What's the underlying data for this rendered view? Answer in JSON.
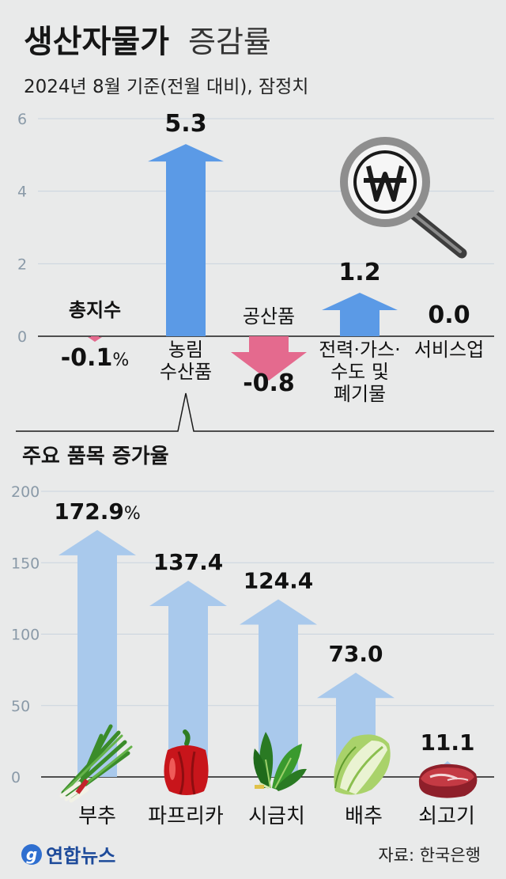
{
  "header": {
    "title_bold": "생산자물가",
    "title_light": "증감률",
    "subtitle": "2024년 8월 기준(전월 대비), 잠정치"
  },
  "section2_title": "주요 품목 증가율",
  "source": "자료: 한국은행",
  "logo_text": "연합뉴스",
  "colors": {
    "background": "#e9eaea",
    "positive_arrow": "#5b9ae6",
    "negative_arrow": "#e46a8e",
    "item_arrow": "#a9c9ec",
    "tick_text": "#8a9aa8"
  },
  "icons": {
    "magnifier": "magnifier-won-icon",
    "items": [
      "chives-icon",
      "paprika-icon",
      "spinach-icon",
      "napa-cabbage-icon",
      "beef-icon"
    ]
  },
  "chart_data": [
    {
      "type": "bar",
      "categories": [
        "총지수",
        "농림 수산품",
        "공산품",
        "전력·가스· 수도 및 폐기물",
        "서비스업"
      ],
      "category_lines": [
        [
          "총지수"
        ],
        [
          "농림",
          "수산품"
        ],
        [
          "공산품"
        ],
        [
          "전력·가스·",
          "수도 및",
          "폐기물"
        ],
        [
          "서비스업"
        ]
      ],
      "values": [
        -0.1,
        5.3,
        -0.8,
        1.2,
        0.0
      ],
      "value_labels": [
        "-0.1",
        "5.3",
        "-0.8",
        "1.2",
        "0.0"
      ],
      "value_unit_first": "%",
      "ylim": [
        0,
        6
      ],
      "yticks": [
        "0",
        "2",
        "4",
        "6"
      ],
      "grid": true,
      "mark": "arrow"
    },
    {
      "type": "bar",
      "title": "주요 품목 증가율",
      "categories": [
        "부추",
        "파프리카",
        "시금치",
        "배추",
        "쇠고기"
      ],
      "values": [
        172.9,
        137.4,
        124.4,
        73.0,
        11.1
      ],
      "value_labels": [
        "172.9",
        "137.4",
        "124.4",
        "73.0",
        "11.1"
      ],
      "value_unit_first": "%",
      "ylim": [
        0,
        200
      ],
      "yticks": [
        "0",
        "50",
        "100",
        "150",
        "200"
      ],
      "grid": true,
      "mark": "arrow"
    }
  ]
}
